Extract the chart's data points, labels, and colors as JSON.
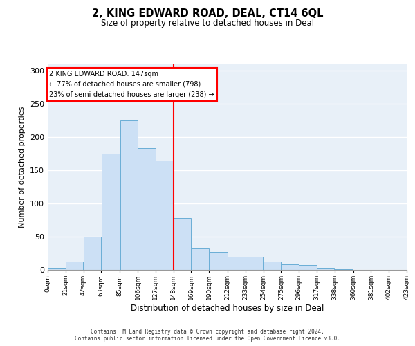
{
  "title": "2, KING EDWARD ROAD, DEAL, CT14 6QL",
  "subtitle": "Size of property relative to detached houses in Deal",
  "xlabel": "Distribution of detached houses by size in Deal",
  "ylabel": "Number of detached properties",
  "bar_color": "#cce0f5",
  "bar_edge_color": "#6aaed6",
  "background_color": "#e8f0f8",
  "vline_x": 148,
  "vline_color": "red",
  "annotation_text": "2 KING EDWARD ROAD: 147sqm\n← 77% of detached houses are smaller (798)\n23% of semi-detached houses are larger (238) →",
  "annotation_box_color": "white",
  "annotation_box_edge": "red",
  "footer": "Contains HM Land Registry data © Crown copyright and database right 2024.\nContains public sector information licensed under the Open Government Licence v3.0.",
  "bins": [
    0,
    21,
    42,
    63,
    85,
    106,
    127,
    148,
    169,
    190,
    212,
    233,
    254,
    275,
    296,
    317,
    338,
    360,
    381,
    402,
    423
  ],
  "counts": [
    2,
    12,
    50,
    175,
    225,
    183,
    165,
    78,
    32,
    27,
    20,
    20,
    13,
    8,
    7,
    2,
    1,
    0,
    0,
    0
  ],
  "ylim": [
    0,
    310
  ],
  "yticks": [
    0,
    50,
    100,
    150,
    200,
    250,
    300
  ]
}
